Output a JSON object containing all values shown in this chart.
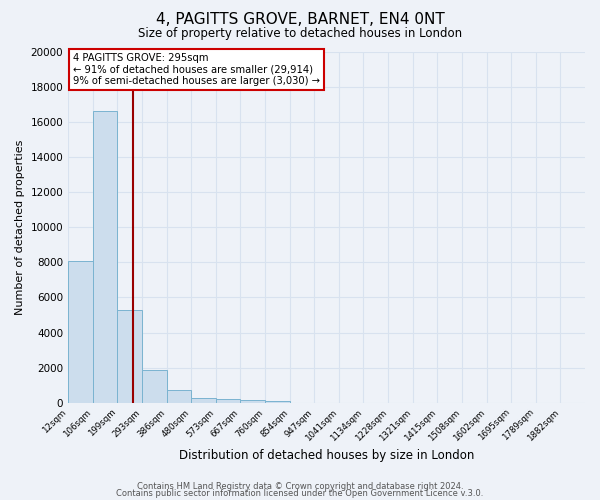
{
  "title": "4, PAGITTS GROVE, BARNET, EN4 0NT",
  "subtitle": "Size of property relative to detached houses in London",
  "xlabel": "Distribution of detached houses by size in London",
  "ylabel": "Number of detached properties",
  "bar_color": "#ccdded",
  "bar_edge_color": "#7ab3d0",
  "background_color": "#eef2f8",
  "grid_color": "#d8e2ef",
  "red_line_color": "#990000",
  "red_line_x": 2.65,
  "annotation_box_edge_color": "#cc0000",
  "annotation_title": "4 PAGITTS GROVE: 295sqm",
  "annotation_line1": "← 91% of detached houses are smaller (29,914)",
  "annotation_line2": "9% of semi-detached houses are larger (3,030) →",
  "categories": [
    "12sqm",
    "106sqm",
    "199sqm",
    "293sqm",
    "386sqm",
    "480sqm",
    "573sqm",
    "667sqm",
    "760sqm",
    "854sqm",
    "947sqm",
    "1041sqm",
    "1134sqm",
    "1228sqm",
    "1321sqm",
    "1415sqm",
    "1508sqm",
    "1602sqm",
    "1695sqm",
    "1789sqm",
    "1882sqm"
  ],
  "values": [
    8100,
    16600,
    5300,
    1850,
    750,
    300,
    225,
    150,
    100,
    0,
    0,
    0,
    0,
    0,
    0,
    0,
    0,
    0,
    0,
    0,
    0
  ],
  "ylim": [
    0,
    20000
  ],
  "yticks": [
    0,
    2000,
    4000,
    6000,
    8000,
    10000,
    12000,
    14000,
    16000,
    18000,
    20000
  ],
  "footer1": "Contains HM Land Registry data © Crown copyright and database right 2024.",
  "footer2": "Contains public sector information licensed under the Open Government Licence v.3.0."
}
